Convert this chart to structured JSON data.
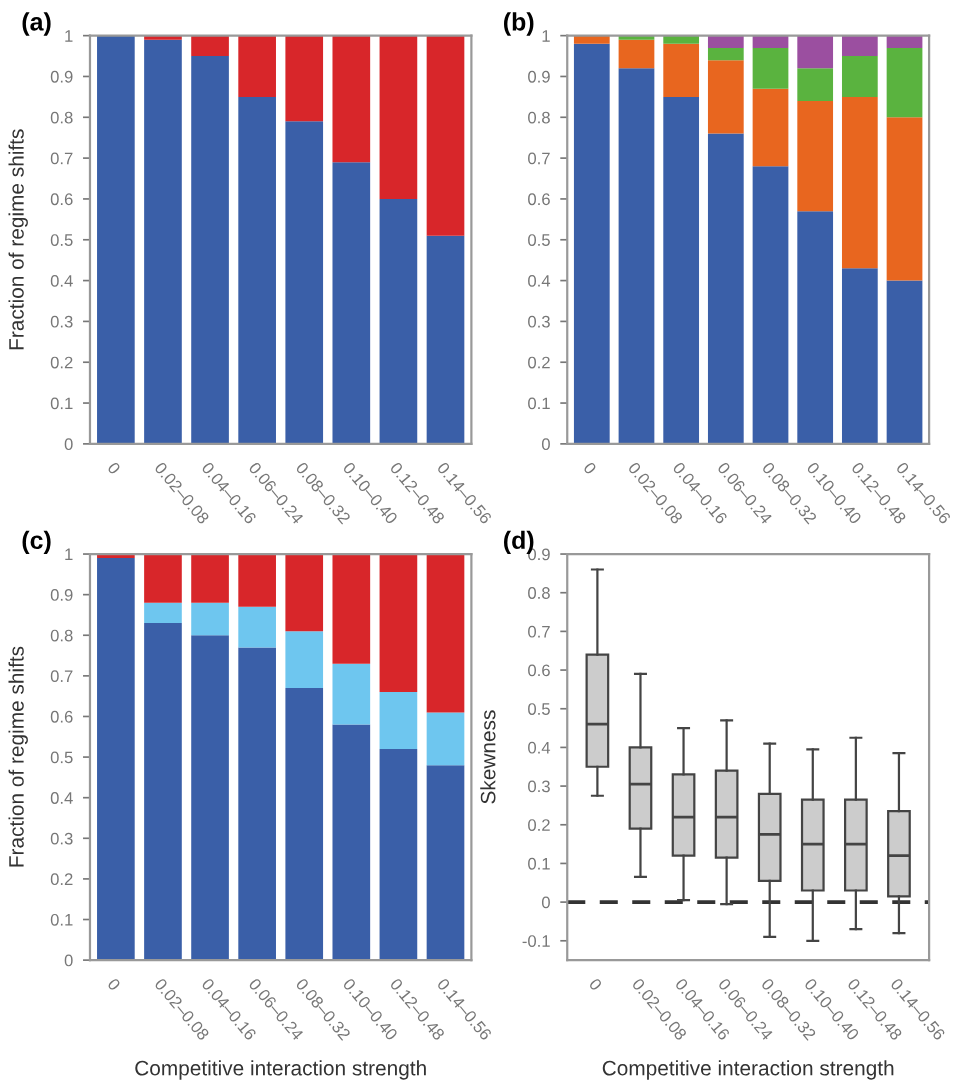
{
  "chart_data": [
    {
      "type": "bar",
      "title": "(a)",
      "ylabel": "Fraction of regime shifts",
      "stacked": true,
      "categories": [
        "0",
        "0.02–0.08",
        "0.04–0.16",
        "0.06–0.24",
        "0.08–0.32",
        "0.10–0.40",
        "0.12–0.48",
        "0.14–0.56"
      ],
      "series": [
        {
          "color": "#3a5fa8",
          "values": [
            1.0,
            0.99,
            0.95,
            0.85,
            0.79,
            0.69,
            0.6,
            0.51
          ]
        },
        {
          "color": "#d8262a",
          "values": [
            0,
            0.01,
            0.05,
            0.15,
            0.21,
            0.31,
            0.4,
            0.49
          ]
        }
      ],
      "ylim": [
        0,
        1
      ],
      "yticks": [
        0,
        0.1,
        0.2,
        0.3,
        0.4,
        0.5,
        0.6,
        0.7,
        0.8,
        0.9,
        1
      ]
    },
    {
      "type": "bar",
      "title": "(b)",
      "stacked": true,
      "categories": [
        "0",
        "0.02–0.08",
        "0.04–0.16",
        "0.06–0.24",
        "0.08–0.32",
        "0.10–0.40",
        "0.12–0.48",
        "0.14–0.56"
      ],
      "series": [
        {
          "color": "#3a5fa8",
          "values": [
            0.98,
            0.92,
            0.85,
            0.76,
            0.68,
            0.57,
            0.43,
            0.4
          ]
        },
        {
          "color": "#e8661f",
          "values": [
            0.02,
            0.07,
            0.13,
            0.18,
            0.19,
            0.27,
            0.42,
            0.4
          ]
        },
        {
          "color": "#5ab33f",
          "values": [
            0,
            0.01,
            0.02,
            0.03,
            0.1,
            0.08,
            0.1,
            0.17
          ]
        },
        {
          "color": "#9b4fa0",
          "values": [
            0,
            0,
            0,
            0.03,
            0.03,
            0.08,
            0.05,
            0.03
          ]
        }
      ],
      "ylim": [
        0,
        1
      ],
      "yticks": [
        0,
        0.1,
        0.2,
        0.3,
        0.4,
        0.5,
        0.6,
        0.7,
        0.8,
        0.9,
        1
      ]
    },
    {
      "type": "bar",
      "title": "(c)",
      "ylabel": "Fraction of regime shifts",
      "xlabel": "Competitive interaction strength",
      "stacked": true,
      "categories": [
        "0",
        "0.02–0.08",
        "0.04–0.16",
        "0.06–0.24",
        "0.08–0.32",
        "0.10–0.40",
        "0.12–0.48",
        "0.14–0.56"
      ],
      "series": [
        {
          "color": "#3a5fa8",
          "values": [
            0.99,
            0.83,
            0.8,
            0.77,
            0.67,
            0.58,
            0.52,
            0.48
          ]
        },
        {
          "color": "#6ec6ef",
          "values": [
            0,
            0.05,
            0.08,
            0.1,
            0.14,
            0.15,
            0.14,
            0.13
          ]
        },
        {
          "color": "#d8262a",
          "values": [
            0.01,
            0.12,
            0.12,
            0.13,
            0.19,
            0.27,
            0.34,
            0.39
          ]
        }
      ],
      "ylim": [
        0,
        1
      ],
      "yticks": [
        0,
        0.1,
        0.2,
        0.3,
        0.4,
        0.5,
        0.6,
        0.7,
        0.8,
        0.9,
        1
      ]
    },
    {
      "type": "box",
      "title": "(d)",
      "ylabel": "Skewness",
      "xlabel": "Competitive interaction strength",
      "categories": [
        "0",
        "0.02–0.08",
        "0.04–0.16",
        "0.06–0.24",
        "0.08–0.32",
        "0.10–0.40",
        "0.12–0.48",
        "0.14–0.56"
      ],
      "series": [
        {
          "color": "#cccccc",
          "boxes": [
            {
              "low": 0.275,
              "q1": 0.35,
              "median": 0.46,
              "q3": 0.64,
              "high": 0.86
            },
            {
              "low": 0.065,
              "q1": 0.19,
              "median": 0.305,
              "q3": 0.4,
              "high": 0.59
            },
            {
              "low": 0.005,
              "q1": 0.12,
              "median": 0.22,
              "q3": 0.33,
              "high": 0.45
            },
            {
              "low": -0.005,
              "q1": 0.115,
              "median": 0.22,
              "q3": 0.34,
              "high": 0.47
            },
            {
              "low": -0.09,
              "q1": 0.055,
              "median": 0.175,
              "q3": 0.28,
              "high": 0.41
            },
            {
              "low": -0.1,
              "q1": 0.03,
              "median": 0.15,
              "q3": 0.265,
              "high": 0.395
            },
            {
              "low": -0.07,
              "q1": 0.03,
              "median": 0.15,
              "q3": 0.265,
              "high": 0.425
            },
            {
              "low": -0.08,
              "q1": 0.015,
              "median": 0.12,
              "q3": 0.235,
              "high": 0.385
            }
          ]
        }
      ],
      "ref_lines": [
        {
          "axis": "y",
          "value": 0,
          "color": "#333333",
          "line_style": "dashed"
        }
      ],
      "ylim": [
        -0.15,
        0.9
      ],
      "yticks": [
        -0.1,
        0,
        0.1,
        0.2,
        0.3,
        0.4,
        0.5,
        0.6,
        0.7,
        0.8,
        0.9
      ]
    }
  ]
}
